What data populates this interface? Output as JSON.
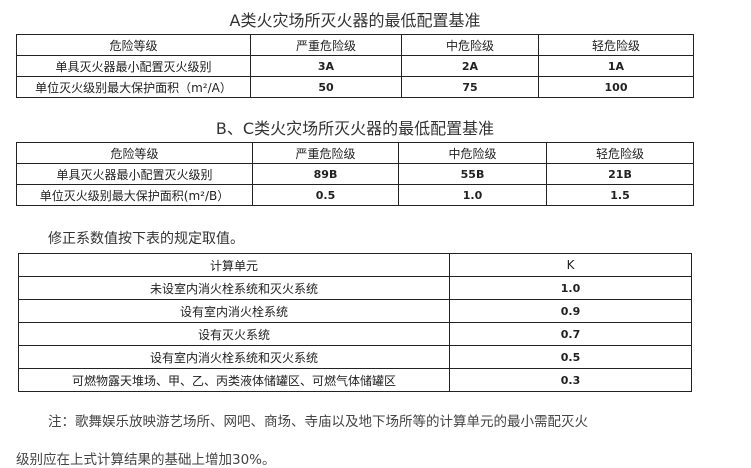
{
  "table_a": {
    "title": "A类火灾场所灭火器的最低配置基准",
    "header": [
      "危险等级",
      "严重危险级",
      "中危险级",
      "轻危险级"
    ],
    "rows": [
      [
        "单具灭火器最小配置灭火级别",
        "3A",
        "2A",
        "1A"
      ],
      [
        "单位灭火级别最大保护面积（m²/A）",
        "50",
        "75",
        "100"
      ]
    ]
  },
  "table_bc": {
    "title": "B、C类火灾场所灭火器的最低配置基准",
    "header": [
      "危险等级",
      "严重危险级",
      "中危险级",
      "轻危险级"
    ],
    "rows": [
      [
        "单具灭火器最小配置灭火级别",
        "89B",
        "55B",
        "21B"
      ],
      [
        "单位灭火级别最大保护面积(m²/B）",
        "0.5",
        "1.0",
        "1.5"
      ]
    ]
  },
  "intro": "修正系数值按下表的规定取值。",
  "table_k": {
    "header": [
      "计算单元",
      "K"
    ],
    "rows": [
      [
        "未设室内消火栓系统和灭火系统",
        "1.0"
      ],
      [
        "设有室内消火栓系统",
        "0.9"
      ],
      [
        "设有灭火系统",
        "0.7"
      ],
      [
        "设有室内消火栓系统和灭火系统",
        "0.5"
      ],
      [
        "可燃物露天堆场、甲、乙、丙类液体储罐区、可燃气体储罐区",
        "0.3"
      ]
    ]
  },
  "note_line1": "注：歌舞娱乐放映游艺场所、网吧、商场、寺庙以及地下场所等的计算单元的最小需配灭火",
  "note_line2": "级别应在上式计算结果的基础上增加30%。"
}
